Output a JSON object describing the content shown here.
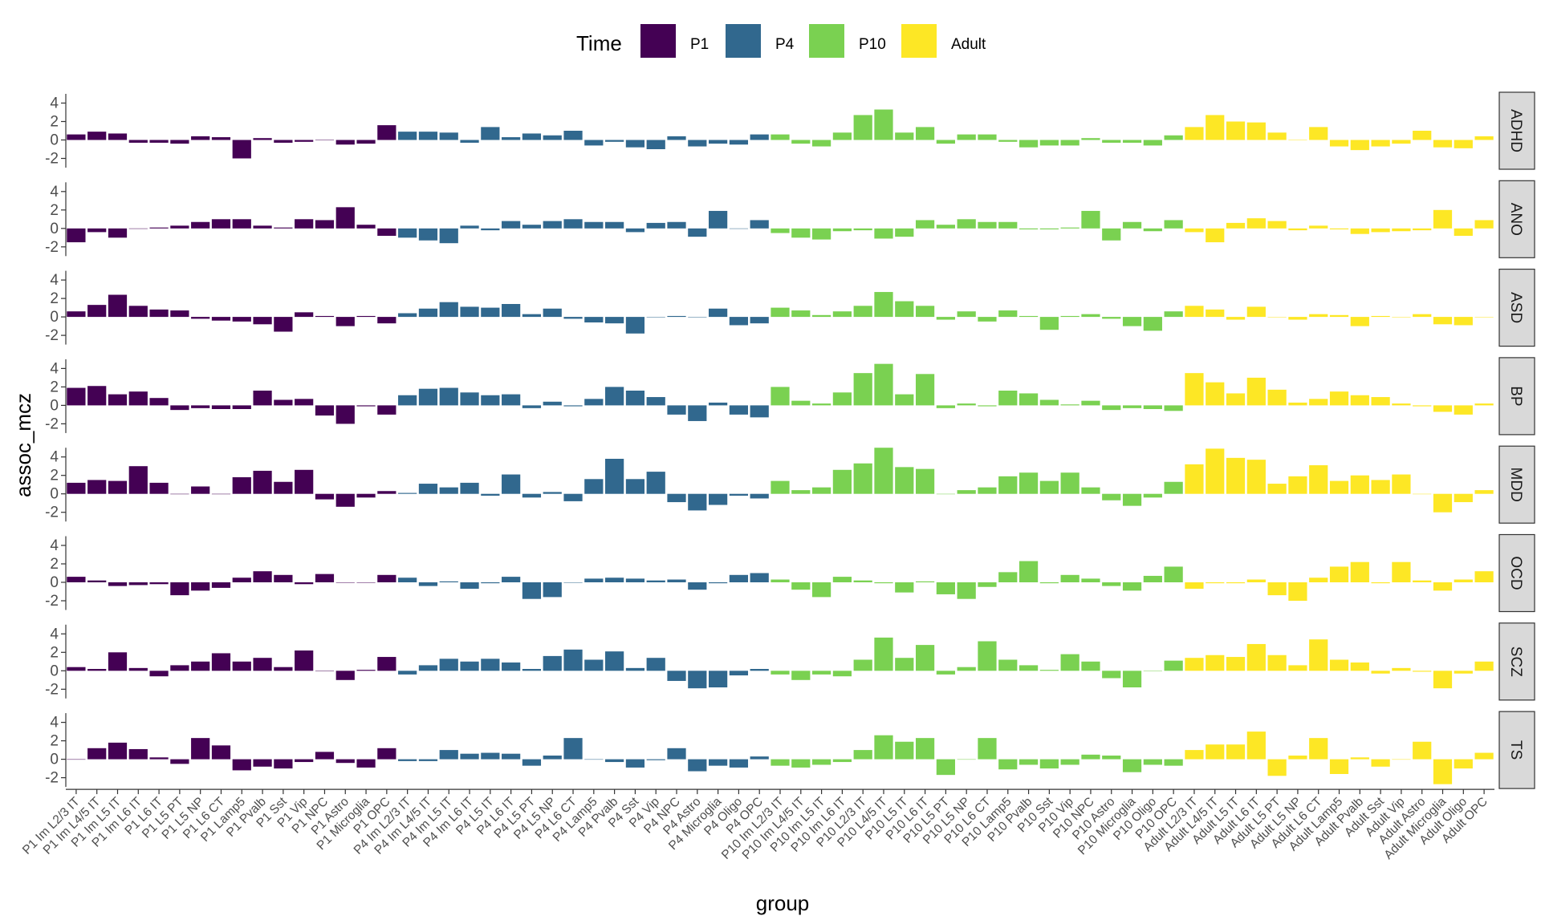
{
  "chart_data": {
    "type": "bar",
    "faceted": true,
    "xlabel": "group",
    "ylabel": "assoc_mcz",
    "legend": {
      "title": "Time",
      "position": "top",
      "entries": [
        {
          "label": "P1",
          "color": "#440154"
        },
        {
          "label": "P4",
          "color": "#31688E"
        },
        {
          "label": "P10",
          "color": "#7AD151"
        },
        {
          "label": "Adult",
          "color": "#FDE725"
        }
      ]
    },
    "y_ticks": [
      "4",
      "2",
      "0",
      "-2"
    ],
    "ylim": [
      -3,
      5
    ],
    "categories": [
      "P1 Im L2/3 IT",
      "P1 Im L4/5 IT",
      "P1 Im L5 IT",
      "P1 Im L6 IT",
      "P1 L6 IT",
      "P1 L5 PT",
      "P1 L5 NP",
      "P1 L6 CT",
      "P1 Lamp5",
      "P1 Pvalb",
      "P1 Sst",
      "P1 Vip",
      "P1 NPC",
      "P1 Astro",
      "P1 Microglia",
      "P1 OPC",
      "P4 Im L2/3 IT",
      "P4 Im L4/5 IT",
      "P4 Im L5 IT",
      "P4 Im L6 IT",
      "P4 L5 IT",
      "P4 L6 IT",
      "P4 L5 PT",
      "P4 L5 NP",
      "P4 L6 CT",
      "P4 Lamp5",
      "P4 Pvalb",
      "P4 Sst",
      "P4 Vip",
      "P4 NPC",
      "P4 Astro",
      "P4 Microglia",
      "P4 Oligo",
      "P4 OPC",
      "P10 Im L2/3 IT",
      "P10 Im L4/5 IT",
      "P10 Im L5 IT",
      "P10 Im L6 IT",
      "P10 L2/3 IT",
      "P10 L4/5 IT",
      "P10 L5 IT",
      "P10 L6 IT",
      "P10 L5 PT",
      "P10 L5 NP",
      "P10 L6 CT",
      "P10 Lamp5",
      "P10 Pvalb",
      "P10 Sst",
      "P10 Vip",
      "P10 NPC",
      "P10 Astro",
      "P10 Microglia",
      "P10 Oligo",
      "P10 OPC",
      "Adult L2/3 IT",
      "Adult L4/5 IT",
      "Adult L5 IT",
      "Adult L6 IT",
      "Adult L5 PT",
      "Adult L5 NP",
      "Adult L6 CT",
      "Adult Lamp5",
      "Adult Pvalb",
      "Adult Sst",
      "Adult Vip",
      "Adult Astro",
      "Adult Microglia",
      "Adult Oligo",
      "Adult OPC"
    ],
    "category_time": [
      "P1",
      "P1",
      "P1",
      "P1",
      "P1",
      "P1",
      "P1",
      "P1",
      "P1",
      "P1",
      "P1",
      "P1",
      "P1",
      "P1",
      "P1",
      "P1",
      "P4",
      "P4",
      "P4",
      "P4",
      "P4",
      "P4",
      "P4",
      "P4",
      "P4",
      "P4",
      "P4",
      "P4",
      "P4",
      "P4",
      "P4",
      "P4",
      "P4",
      "P4",
      "P10",
      "P10",
      "P10",
      "P10",
      "P10",
      "P10",
      "P10",
      "P10",
      "P10",
      "P10",
      "P10",
      "P10",
      "P10",
      "P10",
      "P10",
      "P10",
      "P10",
      "P10",
      "P10",
      "P10",
      "Adult",
      "Adult",
      "Adult",
      "Adult",
      "Adult",
      "Adult",
      "Adult",
      "Adult",
      "Adult",
      "Adult",
      "Adult",
      "Adult",
      "Adult",
      "Adult",
      "Adult"
    ],
    "panels": [
      {
        "name": "ADHD",
        "values": [
          0.6,
          0.9,
          0.7,
          -0.3,
          -0.3,
          -0.4,
          0.4,
          0.3,
          -2.0,
          0.2,
          -0.3,
          -0.2,
          0.0,
          -0.5,
          -0.4,
          1.6,
          0.9,
          0.9,
          0.8,
          -0.3,
          1.4,
          0.3,
          0.7,
          0.5,
          1.0,
          -0.6,
          -0.2,
          -0.8,
          -1.0,
          0.4,
          -0.7,
          -0.4,
          -0.5,
          0.6,
          0.6,
          -0.4,
          -0.7,
          0.8,
          2.7,
          3.3,
          0.8,
          1.4,
          -0.4,
          0.6,
          0.6,
          -0.2,
          -0.8,
          -0.6,
          -0.6,
          0.2,
          -0.3,
          -0.3,
          -0.6,
          0.5,
          1.4,
          2.7,
          2.0,
          1.9,
          0.8,
          0.0,
          1.4,
          -0.7,
          -1.1,
          -0.7,
          -0.4,
          1.0,
          -0.8,
          -0.9,
          0.4
        ]
      },
      {
        "name": "ANO",
        "values": [
          -1.5,
          -0.4,
          -1.0,
          0.0,
          0.1,
          0.3,
          0.7,
          1.0,
          1.0,
          0.3,
          0.1,
          1.0,
          0.9,
          2.3,
          0.4,
          -0.8,
          -1.0,
          -1.3,
          -1.6,
          0.3,
          -0.2,
          0.8,
          0.4,
          0.8,
          1.0,
          0.7,
          0.7,
          -0.4,
          0.6,
          0.7,
          -0.9,
          1.9,
          0.0,
          0.9,
          -0.5,
          -1.0,
          -1.2,
          -0.3,
          -0.2,
          -1.1,
          -0.9,
          0.9,
          0.4,
          1.0,
          0.7,
          0.7,
          -0.1,
          -0.1,
          0.1,
          1.9,
          -1.3,
          0.7,
          -0.3,
          0.9,
          -0.4,
          -1.5,
          0.6,
          1.1,
          0.8,
          -0.2,
          0.3,
          -0.1,
          -0.6,
          -0.4,
          -0.3,
          -0.2,
          2.0,
          -0.8,
          0.9
        ]
      },
      {
        "name": "ASD",
        "values": [
          0.6,
          1.3,
          2.4,
          1.2,
          0.8,
          0.7,
          -0.2,
          -0.4,
          -0.5,
          -0.8,
          -1.6,
          0.5,
          0.1,
          -1.0,
          0.1,
          -0.7,
          0.4,
          0.9,
          1.6,
          1.1,
          1.0,
          1.4,
          0.3,
          0.9,
          -0.2,
          -0.6,
          -0.7,
          -1.8,
          0.0,
          0.1,
          0.0,
          0.9,
          -0.9,
          -0.7,
          1.0,
          0.7,
          0.2,
          0.6,
          1.2,
          2.7,
          1.7,
          1.2,
          -0.3,
          0.6,
          -0.5,
          0.7,
          0.1,
          -1.4,
          0.1,
          0.3,
          -0.2,
          -1.0,
          -1.5,
          0.6,
          1.2,
          0.8,
          -0.3,
          1.1,
          0.0,
          -0.3,
          0.3,
          0.2,
          -1.0,
          0.1,
          0.0,
          0.3,
          -0.8,
          -0.9,
          0.0
        ]
      },
      {
        "name": "BP",
        "values": [
          1.9,
          2.1,
          1.2,
          1.5,
          0.8,
          -0.5,
          -0.3,
          -0.4,
          -0.4,
          1.6,
          0.6,
          0.7,
          -1.1,
          -2.0,
          -0.1,
          -1.0,
          1.1,
          1.8,
          1.9,
          1.4,
          1.1,
          1.2,
          -0.3,
          0.4,
          -0.1,
          0.7,
          2.0,
          1.6,
          0.9,
          -1.0,
          -1.7,
          0.3,
          -1.0,
          -1.3,
          2.0,
          0.5,
          0.2,
          1.4,
          3.5,
          4.5,
          1.2,
          3.4,
          -0.3,
          0.2,
          -0.1,
          1.6,
          1.3,
          0.6,
          0.1,
          0.5,
          -0.5,
          -0.3,
          -0.4,
          -0.6,
          3.5,
          2.5,
          1.3,
          3.0,
          1.7,
          0.3,
          0.7,
          1.5,
          1.1,
          0.9,
          0.2,
          -0.1,
          -0.7,
          -1.0,
          0.2
        ]
      },
      {
        "name": "MDD",
        "values": [
          1.2,
          1.5,
          1.4,
          3.0,
          1.2,
          0.0,
          0.8,
          0.0,
          1.8,
          2.5,
          1.3,
          2.6,
          -0.6,
          -1.4,
          -0.4,
          0.3,
          0.1,
          1.1,
          0.7,
          1.2,
          -0.2,
          2.1,
          -0.4,
          0.2,
          -0.8,
          1.6,
          3.8,
          1.6,
          2.4,
          -0.9,
          -1.8,
          -1.2,
          -0.2,
          -0.5,
          1.4,
          0.4,
          0.7,
          2.6,
          3.3,
          5.0,
          2.9,
          2.7,
          0.0,
          0.4,
          0.7,
          1.9,
          2.3,
          1.4,
          2.3,
          0.7,
          -0.7,
          -1.3,
          -0.4,
          1.3,
          3.2,
          4.9,
          3.9,
          3.7,
          1.1,
          1.9,
          3.1,
          1.4,
          2.0,
          1.5,
          2.1,
          0.0,
          -2.0,
          -0.9,
          0.4
        ]
      },
      {
        "name": "OCD",
        "values": [
          0.6,
          0.2,
          -0.4,
          -0.3,
          -0.2,
          -1.4,
          -0.9,
          -0.6,
          0.5,
          1.2,
          0.8,
          -0.2,
          0.9,
          0.0,
          0.0,
          0.8,
          0.5,
          -0.4,
          0.1,
          -0.7,
          -0.1,
          0.6,
          -1.8,
          -1.6,
          0.0,
          0.4,
          0.5,
          0.4,
          0.2,
          0.3,
          -0.8,
          -0.1,
          0.8,
          1.0,
          0.3,
          -0.8,
          -1.6,
          0.6,
          0.2,
          -0.1,
          -1.1,
          0.1,
          -1.3,
          -1.8,
          -0.5,
          1.1,
          2.3,
          -0.1,
          0.8,
          0.4,
          -0.4,
          -0.9,
          0.7,
          1.7,
          -0.7,
          -0.1,
          -0.1,
          0.3,
          -1.4,
          -2.0,
          0.5,
          1.7,
          2.2,
          -0.1,
          2.2,
          0.2,
          -0.9,
          0.3,
          1.2
        ]
      },
      {
        "name": "SCZ",
        "values": [
          0.4,
          0.2,
          2.0,
          0.3,
          -0.6,
          0.6,
          1.0,
          1.9,
          1.0,
          1.4,
          0.4,
          2.2,
          0.0,
          -1.0,
          0.1,
          1.5,
          -0.4,
          0.6,
          1.3,
          1.0,
          1.3,
          0.9,
          0.2,
          1.6,
          2.3,
          1.2,
          2.1,
          0.3,
          1.4,
          -1.1,
          -1.9,
          -1.8,
          -0.5,
          0.2,
          -0.4,
          -1.0,
          -0.4,
          -0.6,
          1.2,
          3.6,
          1.4,
          2.8,
          -0.4,
          0.4,
          3.2,
          1.2,
          0.6,
          0.1,
          1.8,
          1.0,
          -0.8,
          -1.8,
          0.0,
          1.1,
          1.4,
          1.7,
          1.5,
          2.9,
          1.7,
          0.6,
          3.4,
          1.2,
          0.9,
          -0.3,
          0.3,
          -0.1,
          -1.9,
          -0.3,
          1.0
        ]
      },
      {
        "name": "TS",
        "values": [
          0.0,
          1.2,
          1.8,
          1.1,
          0.2,
          -0.5,
          2.3,
          1.5,
          -1.2,
          -0.8,
          -1.0,
          -0.3,
          0.8,
          -0.4,
          -0.9,
          1.2,
          -0.2,
          -0.2,
          1.0,
          0.6,
          0.7,
          0.6,
          -0.7,
          0.4,
          2.3,
          0.0,
          -0.3,
          -0.9,
          -0.1,
          1.2,
          -1.3,
          -0.7,
          -0.9,
          0.3,
          -0.7,
          -0.9,
          -0.6,
          -0.3,
          1.0,
          2.6,
          1.9,
          2.3,
          -1.7,
          0.0,
          2.3,
          -1.1,
          -0.6,
          -1.0,
          -0.6,
          0.5,
          0.4,
          -1.4,
          -0.6,
          -0.7,
          1.0,
          1.6,
          1.6,
          3.0,
          -1.8,
          0.4,
          2.3,
          -1.6,
          0.2,
          -0.8,
          0.0,
          1.9,
          -2.7,
          -1.0,
          0.7
        ]
      }
    ]
  }
}
